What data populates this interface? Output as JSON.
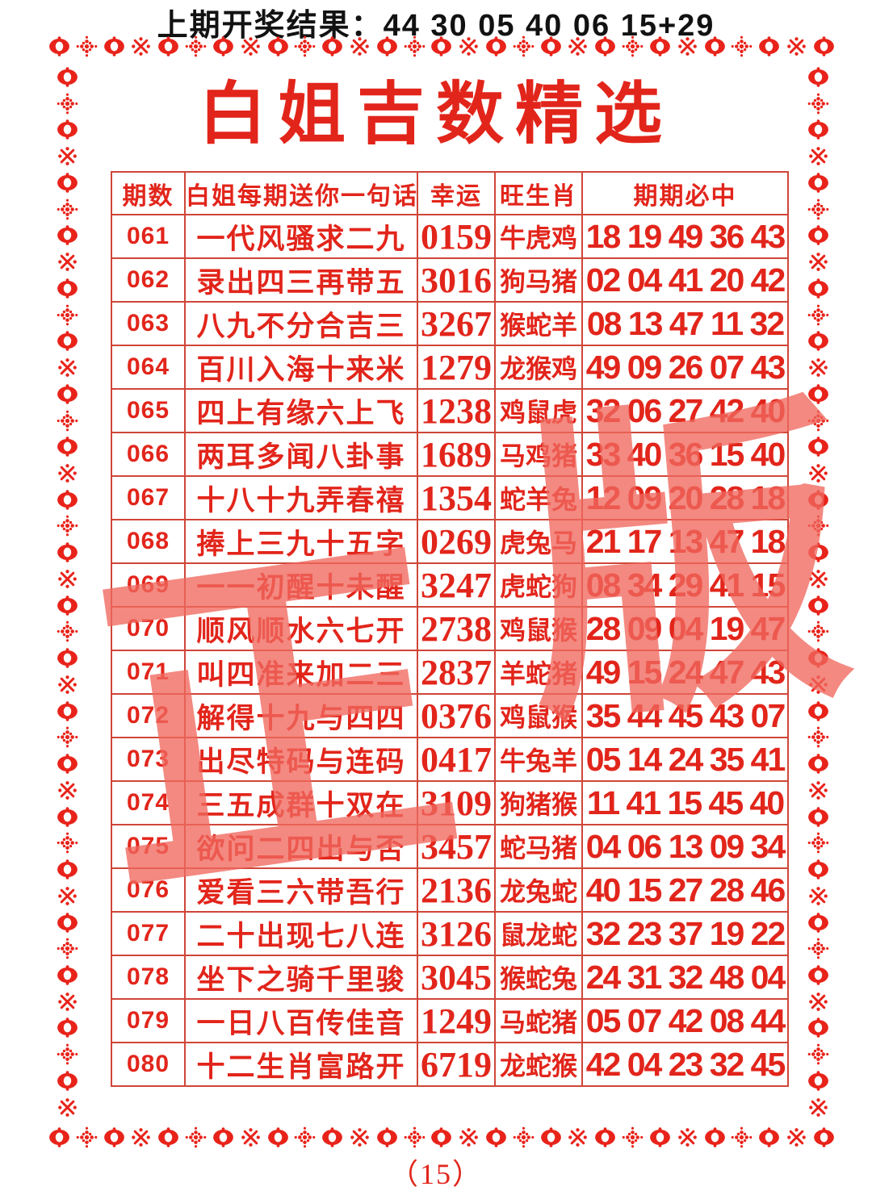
{
  "header": {
    "last_draw_text": "上期开奖结果：44 30 05 40 06 15+29"
  },
  "title": "白姐吉数精选",
  "watermark": {
    "text": "正版",
    "left_char": "正",
    "right_char": "版"
  },
  "page_number": "（15）",
  "icons": [
    "oval-ornament-icon",
    "flower-ornament-icon",
    "snowflake-ornament-icon"
  ],
  "colors": {
    "accent_red": "#e2251b",
    "grid_red": "#cf4639",
    "ornament_red": "#e8231a",
    "watermark_salmon": "#f0685e",
    "headline_black": "#121212",
    "background": "#ffffff"
  },
  "table": {
    "columns": [
      "期数",
      "白姐每期送你一句话",
      "幸运",
      "旺生肖",
      "期期必中"
    ],
    "rows": [
      {
        "issue": "061",
        "phrase": "一代风骚求二九",
        "lucky": "0159",
        "zodiac": "牛虎鸡",
        "numbers": "18 19 49 36 43"
      },
      {
        "issue": "062",
        "phrase": "录出四三再带五",
        "lucky": "3016",
        "zodiac": "狗马猪",
        "numbers": "02 04 41 20 42"
      },
      {
        "issue": "063",
        "phrase": "八九不分合吉三",
        "lucky": "3267",
        "zodiac": "猴蛇羊",
        "numbers": "08 13 47 11 32"
      },
      {
        "issue": "064",
        "phrase": "百川入海十来米",
        "lucky": "1279",
        "zodiac": "龙猴鸡",
        "numbers": "49 09 26 07 43"
      },
      {
        "issue": "065",
        "phrase": "四上有缘六上飞",
        "lucky": "1238",
        "zodiac": "鸡鼠虎",
        "numbers": "32 06 27 42 40"
      },
      {
        "issue": "066",
        "phrase": "两耳多闻八卦事",
        "lucky": "1689",
        "zodiac": "马鸡猪",
        "numbers": "33 40 36 15 40"
      },
      {
        "issue": "067",
        "phrase": "十八十九弄春禧",
        "lucky": "1354",
        "zodiac": "蛇羊兔",
        "numbers": "12 09 20 28 18"
      },
      {
        "issue": "068",
        "phrase": "捧上三九十五字",
        "lucky": "0269",
        "zodiac": "虎兔马",
        "numbers": "21 17 13 47 18"
      },
      {
        "issue": "069",
        "phrase": "一一初醒十未醒",
        "lucky": "3247",
        "zodiac": "虎蛇狗",
        "numbers": "08 34 29 41 15"
      },
      {
        "issue": "070",
        "phrase": "顺风顺水六七开",
        "lucky": "2738",
        "zodiac": "鸡鼠猴",
        "numbers": "28 09 04 19 47"
      },
      {
        "issue": "071",
        "phrase": "叫四准来加二三",
        "lucky": "2837",
        "zodiac": "羊蛇猪",
        "numbers": "49 15 24 47 43"
      },
      {
        "issue": "072",
        "phrase": "解得十九与四四",
        "lucky": "0376",
        "zodiac": "鸡鼠猴",
        "numbers": "35 44 45 43 07"
      },
      {
        "issue": "073",
        "phrase": "出尽特码与连码",
        "lucky": "0417",
        "zodiac": "牛兔羊",
        "numbers": "05 14 24 35 41"
      },
      {
        "issue": "074",
        "phrase": "三五成群十双在",
        "lucky": "3109",
        "zodiac": "狗猪猴",
        "numbers": "11 41 15 45 40"
      },
      {
        "issue": "075",
        "phrase": "欲问二四出与否",
        "lucky": "3457",
        "zodiac": "蛇马猪",
        "numbers": "04 06 13 09 34"
      },
      {
        "issue": "076",
        "phrase": "爱看三六带吾行",
        "lucky": "2136",
        "zodiac": "龙兔蛇",
        "numbers": "40 15 27 28 46"
      },
      {
        "issue": "077",
        "phrase": "二十出现七八连",
        "lucky": "3126",
        "zodiac": "鼠龙蛇",
        "numbers": "32 23 37 19 22"
      },
      {
        "issue": "078",
        "phrase": "坐下之骑千里骏",
        "lucky": "3045",
        "zodiac": "猴蛇兔",
        "numbers": "24 31 32 48 04"
      },
      {
        "issue": "079",
        "phrase": "一日八百传佳音",
        "lucky": "1249",
        "zodiac": "马蛇猪",
        "numbers": "05 07 42 08 44"
      },
      {
        "issue": "080",
        "phrase": "十二生肖富路开",
        "lucky": "6719",
        "zodiac": "龙蛇猴",
        "numbers": "42 04 23 32 45"
      }
    ]
  }
}
